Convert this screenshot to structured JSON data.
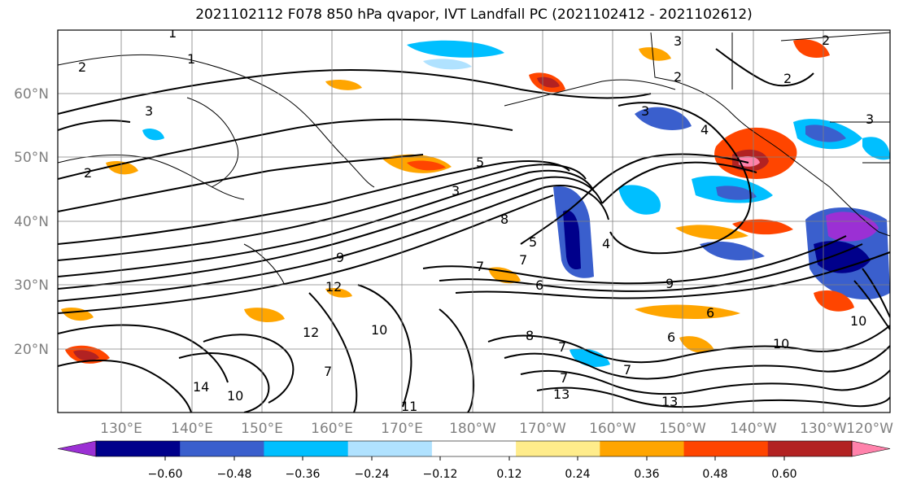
{
  "title": "2021102112 F078 850 hPa qvapor, IVT Landfall PC (2021102412 - 2021102612)",
  "map": {
    "lat_labels": [
      "60°N",
      "50°N",
      "40°N",
      "30°N",
      "20°N"
    ],
    "lon_labels": [
      "130°E",
      "140°E",
      "150°E",
      "160°E",
      "170°E",
      "180°W",
      "170°W",
      "160°W",
      "150°W",
      "140°W",
      "130°W",
      "120°W"
    ],
    "contour_labels": [
      "1",
      "1",
      "2",
      "2",
      "3",
      "2",
      "3",
      "2",
      "3",
      "4",
      "2",
      "3",
      "3",
      "5",
      "8",
      "4",
      "9",
      "12",
      "7",
      "7",
      "5",
      "9",
      "6",
      "10",
      "10",
      "6",
      "6",
      "8",
      "12",
      "7",
      "14",
      "10",
      "11",
      "7",
      "7",
      "13",
      "13",
      "7",
      "10"
    ]
  },
  "colorbar": {
    "ticks": [
      "−0.60",
      "−0.48",
      "−0.36",
      "−0.24",
      "−0.12",
      "0.12",
      "0.24",
      "0.36",
      "0.48",
      "0.60"
    ],
    "colors": [
      "#9b30d4",
      "#00008b",
      "#3a5fcd",
      "#00bfff",
      "#b0e2ff",
      "#ffffff",
      "#ffec8b",
      "#ffa500",
      "#ff4500",
      "#b22222",
      "#ff82ab"
    ]
  }
}
